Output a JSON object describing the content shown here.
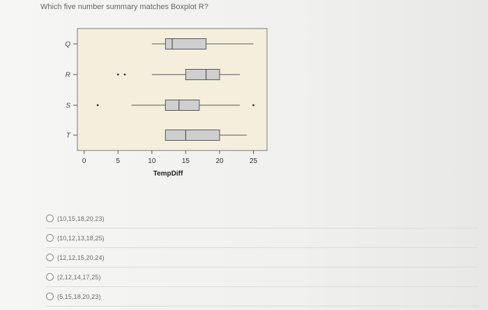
{
  "question": {
    "text": "Which five number summary matches Boxplot R?"
  },
  "chart_data": {
    "type": "boxplot",
    "orientation": "horizontal",
    "xlabel": "TempDiff",
    "ylabel": "",
    "xlim": [
      -1,
      27
    ],
    "xticks": [
      0,
      5,
      10,
      15,
      20,
      25
    ],
    "categories": [
      "Q",
      "R",
      "S",
      "T"
    ],
    "boxes": [
      {
        "name": "Q",
        "whisker_low": 10,
        "q1": 12,
        "median": 13,
        "q3": 18,
        "whisker_high": 25,
        "outliers": []
      },
      {
        "name": "R",
        "whisker_low": 10,
        "q1": 15,
        "median": 18,
        "q3": 20,
        "whisker_high": 23,
        "outliers": [
          5,
          6
        ]
      },
      {
        "name": "S",
        "whisker_low": 7,
        "q1": 12,
        "median": 14,
        "q3": 17,
        "whisker_high": 23,
        "outliers": [
          2,
          25
        ]
      },
      {
        "name": "T",
        "whisker_low": 12,
        "q1": 12,
        "median": 15,
        "q3": 20,
        "whisker_high": 24,
        "outliers": []
      }
    ],
    "colors": {
      "plot_bg": "#f4efdd",
      "box_fill": "#cfcfcf",
      "line": "#555555"
    }
  },
  "options": [
    {
      "label": "(10,15,18,20,23)"
    },
    {
      "label": "(10,12,13,18,25)"
    },
    {
      "label": "(12,12,15,20,24)"
    },
    {
      "label": "(2,12,14,17,25)"
    },
    {
      "label": "(5,15,18,20,23)"
    }
  ]
}
